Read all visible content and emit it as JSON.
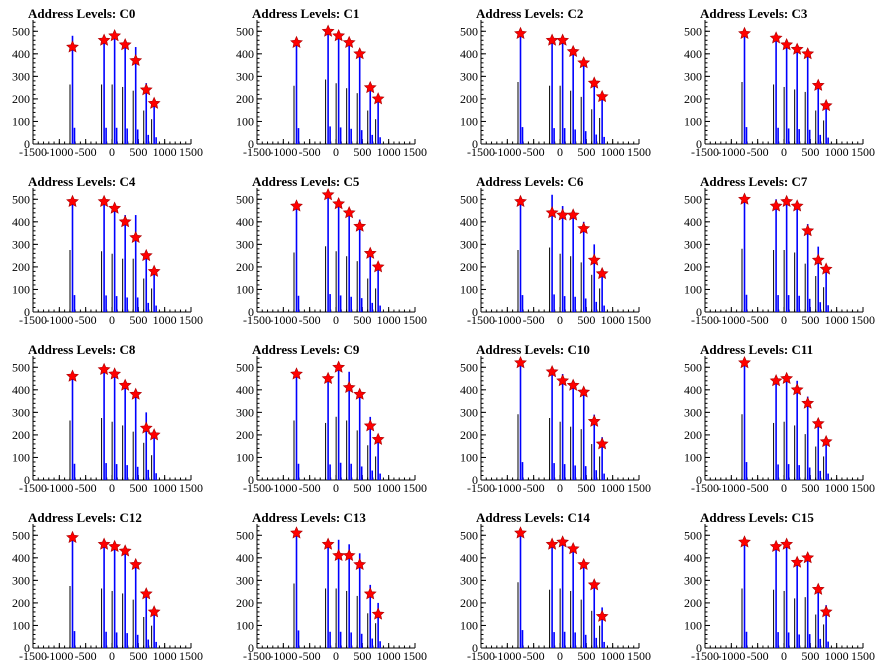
{
  "axes": {
    "xlim": [
      -1500,
      1500
    ],
    "ylim": [
      0,
      550
    ],
    "xticks": [
      "-1500",
      "-1000",
      "-500",
      "0",
      "500",
      "1000",
      "1500"
    ],
    "yticks": [
      "0",
      "100",
      "200",
      "300",
      "400",
      "500"
    ]
  },
  "colors": {
    "bars": "#0000ff",
    "markers": "#ff0000"
  },
  "chart_data": [
    {
      "type": "bar",
      "title": "Address Levels: C0",
      "x": [
        -750,
        -150,
        50,
        250,
        450,
        650,
        800
      ],
      "bar_values": [
        480,
        480,
        480,
        460,
        430,
        270,
        200
      ],
      "marker_values": [
        430,
        460,
        480,
        440,
        370,
        240,
        180
      ]
    },
    {
      "type": "bar",
      "title": "Address Levels: C1",
      "x": [
        -750,
        -150,
        50,
        250,
        450,
        650,
        800
      ],
      "bar_values": [
        470,
        520,
        490,
        450,
        410,
        270,
        200
      ],
      "marker_values": [
        450,
        500,
        480,
        450,
        400,
        250,
        200
      ]
    },
    {
      "type": "bar",
      "title": "Address Levels: C2",
      "x": [
        -750,
        -150,
        50,
        250,
        450,
        650,
        800
      ],
      "bar_values": [
        500,
        470,
        470,
        430,
        380,
        280,
        210
      ],
      "marker_values": [
        490,
        460,
        460,
        410,
        360,
        270,
        210
      ]
    },
    {
      "type": "bar",
      "title": "Address Levels: C3",
      "x": [
        -750,
        -150,
        50,
        250,
        450,
        650,
        800
      ],
      "bar_values": [
        500,
        480,
        460,
        440,
        420,
        270,
        190
      ],
      "marker_values": [
        490,
        470,
        440,
        420,
        400,
        260,
        170
      ]
    },
    {
      "type": "bar",
      "title": "Address Levels: C4",
      "x": [
        -750,
        -150,
        50,
        250,
        450,
        650,
        800
      ],
      "bar_values": [
        500,
        490,
        470,
        430,
        430,
        270,
        190
      ],
      "marker_values": [
        490,
        490,
        460,
        400,
        330,
        250,
        180
      ]
    },
    {
      "type": "bar",
      "title": "Address Levels: C5",
      "x": [
        -750,
        -150,
        50,
        250,
        450,
        650,
        800
      ],
      "bar_values": [
        480,
        530,
        490,
        450,
        410,
        270,
        190
      ],
      "marker_values": [
        470,
        520,
        480,
        440,
        380,
        260,
        200
      ]
    },
    {
      "type": "bar",
      "title": "Address Levels: C6",
      "x": [
        -750,
        -150,
        50,
        250,
        450,
        650,
        800
      ],
      "bar_values": [
        500,
        520,
        470,
        450,
        400,
        300,
        190
      ],
      "marker_values": [
        490,
        440,
        430,
        430,
        370,
        230,
        170
      ]
    },
    {
      "type": "bar",
      "title": "Address Levels: C7",
      "x": [
        -750,
        -150,
        50,
        250,
        450,
        650,
        800
      ],
      "bar_values": [
        510,
        500,
        500,
        480,
        390,
        290,
        200
      ],
      "marker_values": [
        500,
        470,
        490,
        470,
        360,
        230,
        190
      ]
    },
    {
      "type": "bar",
      "title": "Address Levels: C8",
      "x": [
        -750,
        -150,
        50,
        250,
        450,
        650,
        800
      ],
      "bar_values": [
        480,
        500,
        470,
        440,
        390,
        300,
        200
      ],
      "marker_values": [
        460,
        490,
        470,
        420,
        380,
        230,
        200
      ]
    },
    {
      "type": "bar",
      "title": "Address Levels: C9",
      "x": [
        -750,
        -150,
        50,
        250,
        450,
        650,
        800
      ],
      "bar_values": [
        480,
        460,
        510,
        480,
        400,
        280,
        190
      ],
      "marker_values": [
        470,
        450,
        500,
        410,
        380,
        240,
        180
      ]
    },
    {
      "type": "bar",
      "title": "Address Levels: C10",
      "x": [
        -750,
        -150,
        50,
        250,
        450,
        650,
        800
      ],
      "bar_values": [
        530,
        500,
        470,
        430,
        410,
        290,
        190
      ],
      "marker_values": [
        520,
        480,
        440,
        420,
        390,
        260,
        160
      ]
    },
    {
      "type": "bar",
      "title": "Address Levels: C11",
      "x": [
        -750,
        -150,
        50,
        250,
        450,
        650,
        800
      ],
      "bar_values": [
        530,
        460,
        470,
        440,
        370,
        270,
        190
      ],
      "marker_values": [
        520,
        440,
        450,
        400,
        340,
        250,
        170
      ]
    },
    {
      "type": "bar",
      "title": "Address Levels: C12",
      "x": [
        -750,
        -150,
        50,
        250,
        450,
        650,
        800
      ],
      "bar_values": [
        500,
        480,
        460,
        440,
        390,
        250,
        180
      ],
      "marker_values": [
        490,
        460,
        450,
        430,
        370,
        240,
        160
      ]
    },
    {
      "type": "bar",
      "title": "Address Levels: C13",
      "x": [
        -750,
        -150,
        50,
        250,
        450,
        650,
        800
      ],
      "bar_values": [
        520,
        480,
        480,
        460,
        420,
        280,
        200
      ],
      "marker_values": [
        510,
        460,
        410,
        410,
        370,
        240,
        150
      ]
    },
    {
      "type": "bar",
      "title": "Address Levels: C14",
      "x": [
        -750,
        -150,
        50,
        250,
        450,
        650,
        800
      ],
      "bar_values": [
        530,
        470,
        480,
        460,
        390,
        300,
        180
      ],
      "marker_values": [
        510,
        460,
        470,
        440,
        370,
        280,
        140
      ]
    },
    {
      "type": "bar",
      "title": "Address Levels: C15",
      "x": [
        -750,
        -150,
        50,
        250,
        450,
        650,
        800
      ],
      "bar_values": [
        480,
        470,
        460,
        400,
        410,
        270,
        190
      ],
      "marker_values": [
        470,
        450,
        460,
        380,
        400,
        260,
        160
      ]
    }
  ]
}
